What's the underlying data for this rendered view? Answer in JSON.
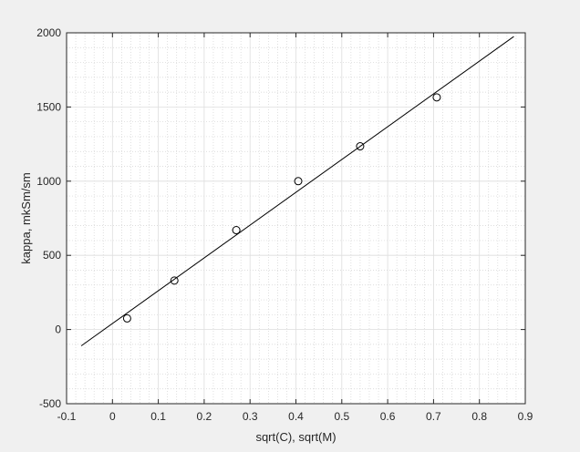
{
  "chart_data": {
    "type": "scatter",
    "xlabel": "sqrt(C), sqrt(M)",
    "ylabel": "kappa, mkSm/sm",
    "xlim": [
      -0.1,
      0.9
    ],
    "ylim": [
      -500,
      2000
    ],
    "xticks": [
      -0.1,
      0,
      0.1,
      0.2,
      0.3,
      0.4,
      0.5,
      0.6,
      0.7,
      0.8,
      0.9
    ],
    "yticks": [
      -500,
      0,
      500,
      1000,
      1500,
      2000
    ],
    "xtick_labels": [
      "-0.1",
      "0",
      "0.1",
      "0.2",
      "0.3",
      "0.4",
      "0.5",
      "0.6",
      "0.7",
      "0.8",
      "0.9"
    ],
    "ytick_labels": [
      "-500",
      "0",
      "500",
      "1000",
      "1500",
      "2000"
    ],
    "grid": "major and minor (dotted)",
    "series": [
      {
        "kind": "markers",
        "marker": "open-circle",
        "color": "#000000",
        "x": [
          0.032,
          0.135,
          0.27,
          0.405,
          0.54,
          0.707
        ],
        "y": [
          75,
          330,
          670,
          1000,
          1235,
          1565
        ]
      },
      {
        "kind": "line",
        "color": "#000000",
        "x": [
          -0.068,
          0.875
        ],
        "y": [
          -110,
          1975
        ]
      }
    ]
  }
}
